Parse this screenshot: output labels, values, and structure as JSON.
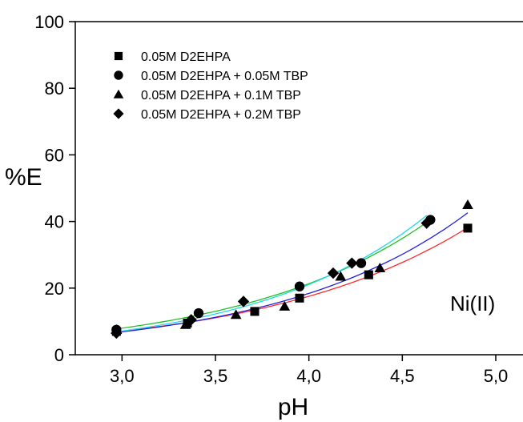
{
  "chart_data": {
    "type": "scatter",
    "xlabel": "pH",
    "ylabel": "%E",
    "xlim": [
      2.75,
      5.15
    ],
    "ylim": [
      0,
      100
    ],
    "xticks": [
      3.0,
      3.5,
      4.0,
      4.5,
      5.0
    ],
    "yticks": [
      0,
      20,
      40,
      60,
      80,
      100
    ],
    "xtick_labels": [
      "3,0",
      "3,5",
      "4,0",
      "4,5",
      "5,0"
    ],
    "ytick_labels": [
      "0",
      "20",
      "40",
      "60",
      "80",
      "100"
    ],
    "annotation": "Ni(II)",
    "grid": false,
    "legend_position": "top-left",
    "series": [
      {
        "name": "0.05M D2EHPA",
        "marker": "square",
        "fit_color": "#ff2a2a",
        "x": [
          2.97,
          3.35,
          3.71,
          3.95,
          4.32,
          4.85
        ],
        "y": [
          7.0,
          9.5,
          13.0,
          17.0,
          24.0,
          38.0
        ]
      },
      {
        "name": "0.05M D2EHPA + 0.05M TBP",
        "marker": "circle",
        "fit_color": "#22c022",
        "x": [
          2.97,
          3.41,
          3.95,
          4.28,
          4.65
        ],
        "y": [
          7.5,
          12.5,
          20.5,
          27.5,
          40.5
        ]
      },
      {
        "name": "0.05M D2EHPA + 0.1M TBP",
        "marker": "triangle",
        "fit_color": "#2020e0",
        "x": [
          2.97,
          3.34,
          3.61,
          3.87,
          4.17,
          4.38,
          4.85
        ],
        "y": [
          7.5,
          9.0,
          12.0,
          14.5,
          23.5,
          26.0,
          45.0
        ]
      },
      {
        "name": "0.05M D2EHPA + 0.2M TBP",
        "marker": "diamond",
        "fit_color": "#20d8e8",
        "x": [
          2.97,
          3.37,
          3.65,
          4.13,
          4.23,
          4.63
        ],
        "y": [
          6.5,
          10.5,
          16.0,
          24.5,
          27.5,
          39.5
        ]
      }
    ]
  }
}
